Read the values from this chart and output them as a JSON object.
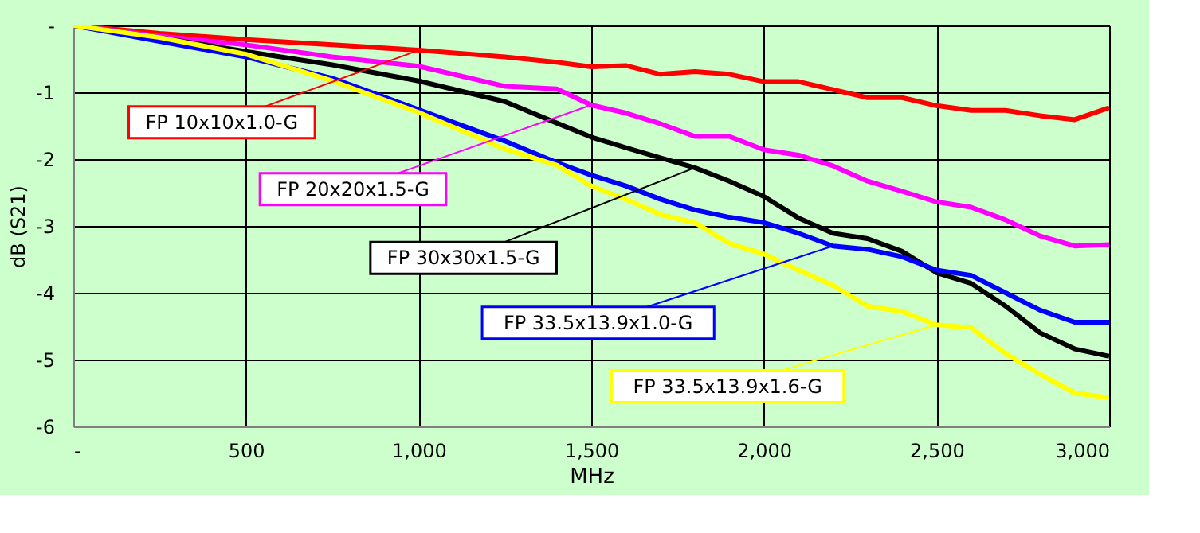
{
  "chart_data": {
    "type": "line",
    "xlabel": "MHz",
    "ylabel": "dB (S21)",
    "x": [
      0,
      250,
      500,
      750,
      1000,
      1250,
      1400,
      1500,
      1600,
      1700,
      1800,
      1900,
      2000,
      2100,
      2200,
      2300,
      2400,
      2500,
      2600,
      2700,
      2800,
      2900,
      3000
    ],
    "series": [
      {
        "name": "FP 10x10x1.0-G",
        "color": "#ff0000",
        "values": [
          0,
          -0.12,
          -0.21,
          -0.29,
          -0.37,
          -0.47,
          -0.55,
          -0.62,
          -0.6,
          -0.73,
          -0.69,
          -0.73,
          -0.84,
          -0.84,
          -0.96,
          -1.08,
          -1.08,
          -1.2,
          -1.27,
          -1.27,
          -1.35,
          -1.41,
          -1.23
        ]
      },
      {
        "name": "FP 20x20x1.5-G",
        "color": "#ff00ff",
        "values": [
          0,
          -0.16,
          -0.29,
          -0.47,
          -0.61,
          -0.91,
          -0.95,
          -1.19,
          -1.31,
          -1.47,
          -1.66,
          -1.66,
          -1.86,
          -1.94,
          -2.1,
          -2.33,
          -2.48,
          -2.64,
          -2.72,
          -2.91,
          -3.15,
          -3.3,
          -3.28
        ]
      },
      {
        "name": "FP 30x30x1.5-G",
        "color": "#000000",
        "values": [
          0,
          -0.18,
          -0.39,
          -0.59,
          -0.83,
          -1.14,
          -1.46,
          -1.67,
          -1.83,
          -1.98,
          -2.13,
          -2.33,
          -2.56,
          -2.88,
          -3.11,
          -3.19,
          -3.38,
          -3.7,
          -3.86,
          -4.2,
          -4.6,
          -4.84,
          -4.95
        ]
      },
      {
        "name": "FP 33.5x13.9x1.0-G",
        "color": "#0000ff",
        "values": [
          0,
          -0.24,
          -0.47,
          -0.79,
          -1.26,
          -1.73,
          -2.05,
          -2.24,
          -2.4,
          -2.6,
          -2.76,
          -2.87,
          -2.95,
          -3.11,
          -3.3,
          -3.35,
          -3.46,
          -3.66,
          -3.74,
          -4.0,
          -4.26,
          -4.44,
          -4.44
        ]
      },
      {
        "name": "FP 33.5x13.9x1.6-G",
        "color": "#ffff00",
        "values": [
          0,
          -0.18,
          -0.43,
          -0.83,
          -1.3,
          -1.85,
          -2.09,
          -2.4,
          -2.6,
          -2.83,
          -2.95,
          -3.26,
          -3.42,
          -3.66,
          -3.89,
          -4.2,
          -4.28,
          -4.48,
          -4.52,
          -4.91,
          -5.22,
          -5.5,
          -5.57
        ]
      }
    ],
    "xlim": [
      0,
      3000
    ],
    "ylim": [
      -6,
      0
    ],
    "xticks": [
      {
        "value": 0,
        "label": "-"
      },
      500,
      {
        "value": 1000,
        "label": "1,000"
      },
      {
        "value": 1500,
        "label": "1,500"
      },
      {
        "value": 2000,
        "label": "2,000"
      },
      {
        "value": 2500,
        "label": "2,500"
      },
      {
        "value": 3000,
        "label": "3,000"
      }
    ],
    "yticks": [
      -6,
      -5,
      -4,
      -3,
      -2,
      -1,
      {
        "value": 0,
        "label": "-"
      }
    ],
    "grid": true,
    "marker": "none",
    "line_style": "solid"
  }
}
